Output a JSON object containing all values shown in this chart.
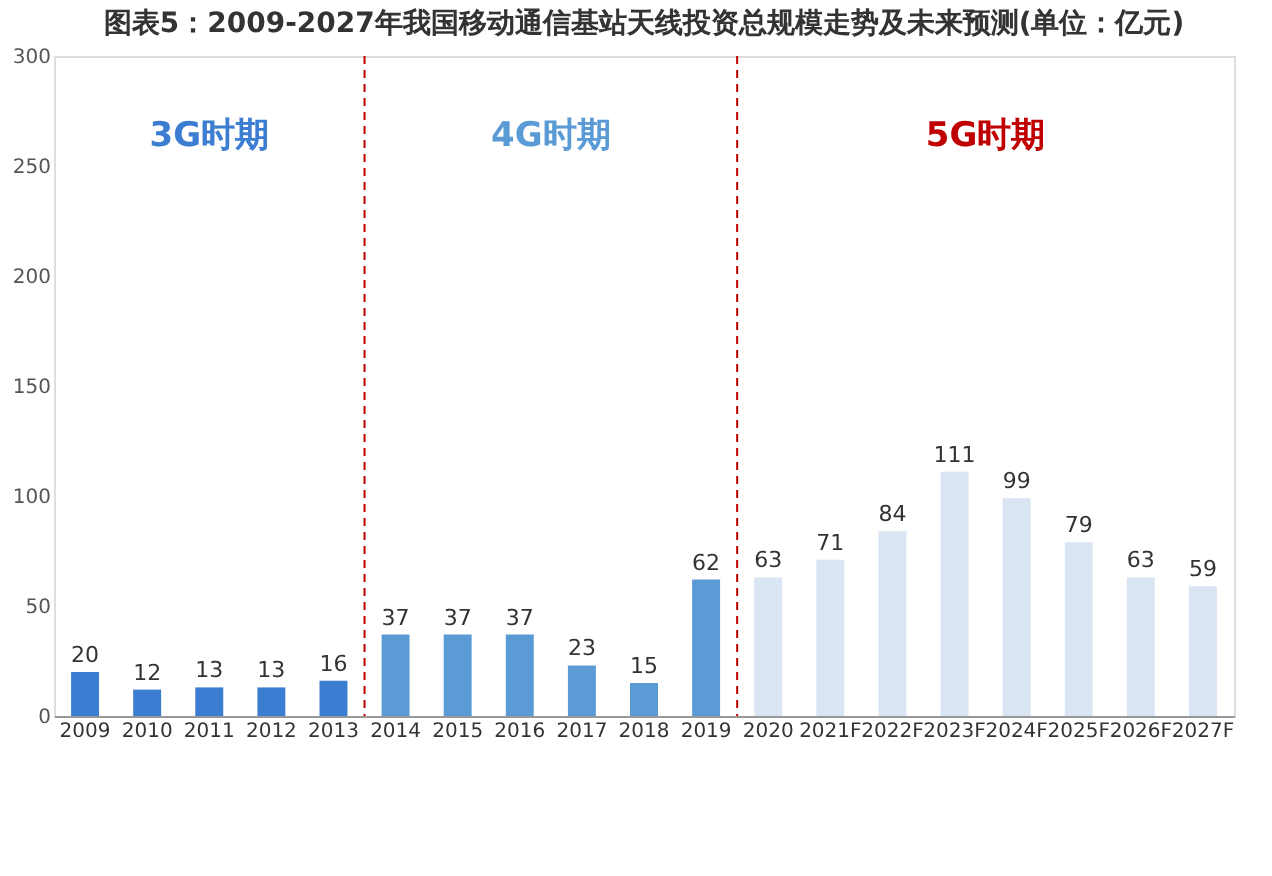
{
  "chart_data": {
    "type": "bar",
    "title": "图表5：2009-2027年我国移动通信基站天线投资总规模走势及未来预测(单位：亿元)",
    "categories": [
      "2009",
      "2010",
      "2011",
      "2012",
      "2013",
      "2014",
      "2015",
      "2016",
      "2017",
      "2018",
      "2019",
      "2020",
      "2021F",
      "2022F",
      "2023F",
      "2024F",
      "2025F",
      "2026F",
      "2027F"
    ],
    "values": [
      20,
      12,
      13,
      13,
      16,
      37,
      37,
      37,
      23,
      15,
      62,
      63,
      71,
      84,
      111,
      99,
      79,
      63,
      59
    ],
    "colors": [
      "#3b7dd1",
      "#3b7dd1",
      "#3b7dd1",
      "#3b7dd1",
      "#3b7dd1",
      "#5b9bd5",
      "#5b9bd5",
      "#5b9bd5",
      "#5b9bd5",
      "#5b9bd5",
      "#5b9bd5",
      "#dae5f4",
      "#dae5f4",
      "#dae5f4",
      "#dae5f4",
      "#dae5f4",
      "#dae5f4",
      "#dae5f4",
      "#dae5f4"
    ],
    "data_labels": true,
    "ylim": [
      0,
      300
    ],
    "yticks": [
      0,
      50,
      100,
      150,
      200,
      250,
      300
    ],
    "grid": false,
    "annotations": [
      "3G时期",
      "4G时期",
      "5G时期"
    ]
  }
}
